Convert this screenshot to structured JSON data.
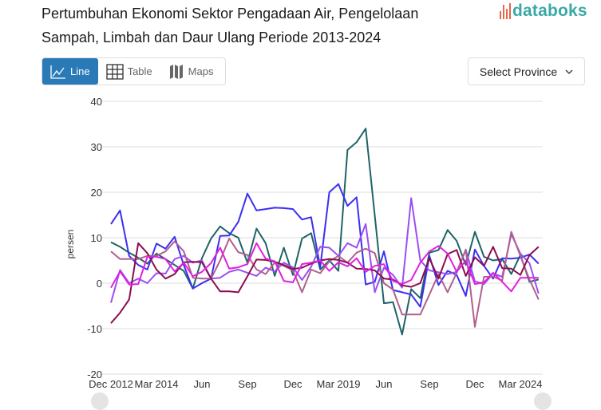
{
  "header": {
    "title": "Pertumbuhan Ekonomi Sektor Pengadaan Air, Pengelolaan Sampah, Limbah dan Daur Ulang Periode 2013-2024",
    "logo_text": "databoks"
  },
  "view_tabs": [
    {
      "label": "Line",
      "icon": "line-chart-icon",
      "active": true
    },
    {
      "label": "Table",
      "icon": "table-grid-icon",
      "active": false
    },
    {
      "label": "Maps",
      "icon": "map-icon",
      "active": false
    }
  ],
  "province_select": {
    "label": "Select Province",
    "icon": "chevron-down-icon"
  },
  "colors": {
    "accent": "#2a7ab8",
    "logo": "#3aa9a6",
    "logo_bars": "#e8664a"
  },
  "chart_data": {
    "type": "line",
    "ylabel": "persen",
    "ylim": [
      -20,
      40
    ],
    "yticks": [
      40,
      30,
      20,
      10,
      0,
      -10,
      -20
    ],
    "grid": true,
    "x_tick_labels": [
      {
        "index": 0,
        "label": "Dec 2012"
      },
      {
        "index": 5,
        "label": "Mar 2014"
      },
      {
        "index": 10,
        "label": "Jun"
      },
      {
        "index": 15,
        "label": "Sep"
      },
      {
        "index": 20,
        "label": "Dec"
      },
      {
        "index": 25,
        "label": "Mar 2019"
      },
      {
        "index": 30,
        "label": "Jun"
      },
      {
        "index": 35,
        "label": "Sep"
      },
      {
        "index": 40,
        "label": "Dec"
      },
      {
        "index": 45,
        "label": "Mar 2024"
      }
    ],
    "series": [
      {
        "color": "#1f6468",
        "values": [
          9,
          8,
          6.7,
          5.6,
          4.3,
          6.5,
          5.3,
          4,
          2.7,
          -1.2,
          5.5,
          9.8,
          12.5,
          11,
          10,
          4.5,
          12,
          8.8,
          1.6,
          7.8,
          1.8,
          9.8,
          11,
          3,
          5,
          2.7,
          29.3,
          31,
          34,
          14.8,
          -4.4,
          -4.2,
          -11.3,
          -1.3,
          -3.3,
          6.7,
          7.3,
          11.7,
          9.3,
          4,
          11.3,
          5.8,
          5,
          5.3,
          2,
          6.2,
          0.3,
          0.8
        ]
      },
      {
        "color": "#3b2ff2",
        "values": [
          13,
          16,
          6,
          4,
          3,
          8.7,
          7.6,
          10.2,
          4,
          -1.2,
          0,
          1,
          10.4,
          10.5,
          13.5,
          19.7,
          16,
          16.3,
          16.6,
          16.5,
          16.3,
          14,
          14.5,
          3.5,
          20,
          21.8,
          17,
          18.9,
          -0.3,
          0.3,
          7,
          -1.5,
          -2,
          -2.5,
          -5.2,
          6,
          -0.4,
          2.7,
          1.8,
          -2.8,
          7.4,
          3.8,
          1,
          5.5,
          5.4,
          5.6,
          6.3,
          4.3
        ]
      },
      {
        "color": "#9a4ff2",
        "values": [
          -4.3,
          2.9,
          0,
          1,
          0,
          2.2,
          2.1,
          5.3,
          6,
          4.5,
          5,
          1,
          1.2,
          2.5,
          3,
          2.3,
          1.6,
          3.4,
          2.6,
          4.5,
          3.5,
          0.7,
          3.6,
          8,
          7.8,
          6,
          8.8,
          7.8,
          13,
          -2,
          3.4,
          1.8,
          -1,
          18.7,
          5,
          2.8,
          2.4,
          2,
          2.5,
          7.3,
          0.4,
          -0.2,
          2.1,
          1.4,
          10.8,
          6.5,
          4.4,
          -2.3
        ]
      },
      {
        "color": "#b0608f",
        "values": [
          7,
          5.3,
          5.3,
          5.3,
          6,
          6,
          7,
          9.2,
          7,
          1.2,
          1,
          1,
          5,
          9.8,
          6.8,
          6.2,
          3,
          2,
          4.5,
          3.8,
          2.8,
          -2,
          3,
          2.2,
          4.8,
          6,
          4.5,
          6.7,
          7.6,
          6.6,
          0,
          -1.4,
          -6.9,
          -6.9,
          -6.9,
          -2.5,
          2,
          -2,
          2.3,
          7.4,
          -9.6,
          1.4,
          1.4,
          0.6,
          11.3,
          6,
          0.8,
          -3.6
        ]
      },
      {
        "color": "#8c0d52",
        "values": [
          -8.8,
          -6.5,
          -3.6,
          8.8,
          6.6,
          3,
          1,
          2,
          4.6,
          4.7,
          4.6,
          1,
          -1.8,
          -1.8,
          -2,
          1.5,
          5.2,
          5.1,
          4.7,
          4,
          3.1,
          3.4,
          4.3,
          5,
          5.3,
          5.1,
          4.5,
          3.2,
          3.1,
          2.8,
          1,
          0.8,
          -0.5,
          -0.8,
          0,
          5.5,
          1,
          6.4,
          7.3,
          1.6,
          5.7,
          3.8,
          8,
          3.3,
          3.2,
          1.8,
          6.2,
          8
        ]
      },
      {
        "color": "#e020e0",
        "values": [
          -1,
          2.6,
          -0.3,
          -0.2,
          5.8,
          5.8,
          5.3,
          2.6,
          4.5,
          1.5,
          2.5,
          4.4,
          7.8,
          3.2,
          3.5,
          4.2,
          8.8,
          5.4,
          4.8,
          0.5,
          0.2,
          4.2,
          4.5,
          5,
          2.7,
          4.6,
          3.7,
          5.5,
          2.5,
          3.8,
          4.2,
          0.5,
          -0.2,
          0.7,
          4.5,
          7,
          8.2,
          6.5,
          2.5,
          5,
          -0.2,
          0.2,
          2.3,
          0.3,
          -1.8,
          1.2,
          1.2,
          1.2
        ]
      }
    ]
  }
}
